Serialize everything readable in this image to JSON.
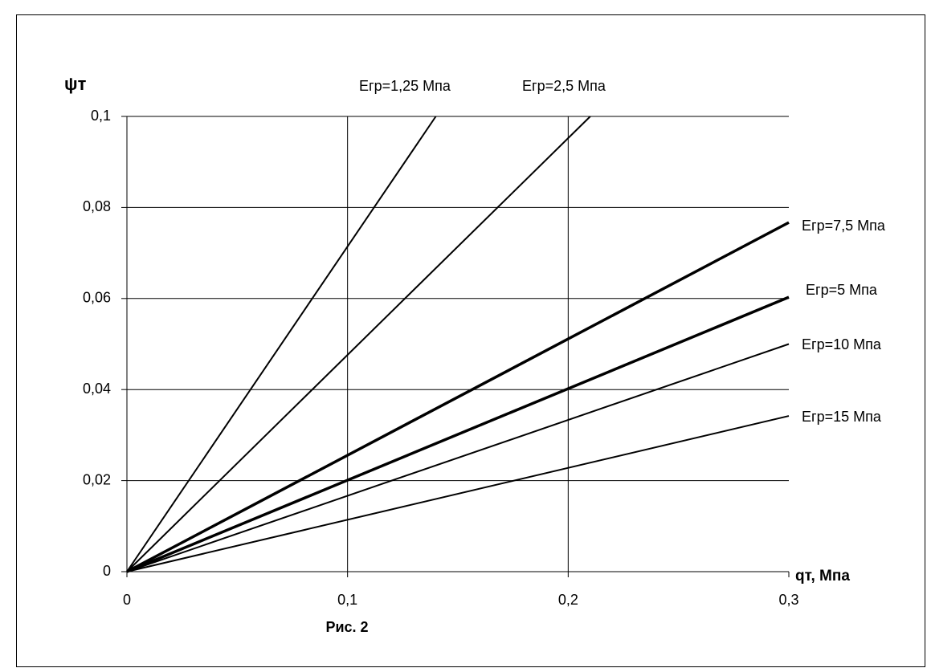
{
  "chart_data": {
    "type": "line",
    "xlabel": "qт, Мпа",
    "ylabel": "ψт",
    "caption": "Рис. 2",
    "xlim": [
      0,
      0.3
    ],
    "ylim": [
      0,
      0.1
    ],
    "xticks": [
      0,
      {
        "value": 0.1,
        "label": "0,1"
      },
      {
        "value": 0.2,
        "label": "0,2"
      },
      {
        "value": 0.3,
        "label": "0,3"
      }
    ],
    "yticks": [
      0,
      {
        "value": 0.02,
        "label": "0,02"
      },
      {
        "value": 0.04,
        "label": "0,04"
      },
      {
        "value": 0.06,
        "label": "0,06"
      },
      {
        "value": 0.08,
        "label": "0,08"
      },
      {
        "value": 0.1,
        "label": "0,1"
      }
    ],
    "grid": true,
    "series": [
      {
        "name": "Егр=1,25 Мпа",
        "color": "#000000",
        "linewidth": 2,
        "x": [
          0,
          0.14
        ],
        "values": [
          0,
          0.1
        ]
      },
      {
        "name": "Егр=2,5 Мпа",
        "color": "#000000",
        "linewidth": 2,
        "x": [
          0,
          0.21
        ],
        "values": [
          0,
          0.1
        ]
      },
      {
        "name": "Егр=7,5 Мпа",
        "color": "#000000",
        "linewidth": 3.5,
        "x": [
          0,
          0.3
        ],
        "values": [
          0,
          0.0767
        ]
      },
      {
        "name": "Егр=5 Мпа",
        "color": "#000000",
        "linewidth": 3.5,
        "x": [
          0,
          0.3
        ],
        "values": [
          0,
          0.0603
        ]
      },
      {
        "name": "Егр=10 Мпа",
        "color": "#000000",
        "linewidth": 2,
        "x": [
          0,
          0.3
        ],
        "values": [
          0,
          0.05
        ]
      },
      {
        "name": "Егр=15 Мпа",
        "color": "#000000",
        "linewidth": 2,
        "x": [
          0,
          0.3
        ],
        "values": [
          0,
          0.0342
        ]
      }
    ]
  }
}
